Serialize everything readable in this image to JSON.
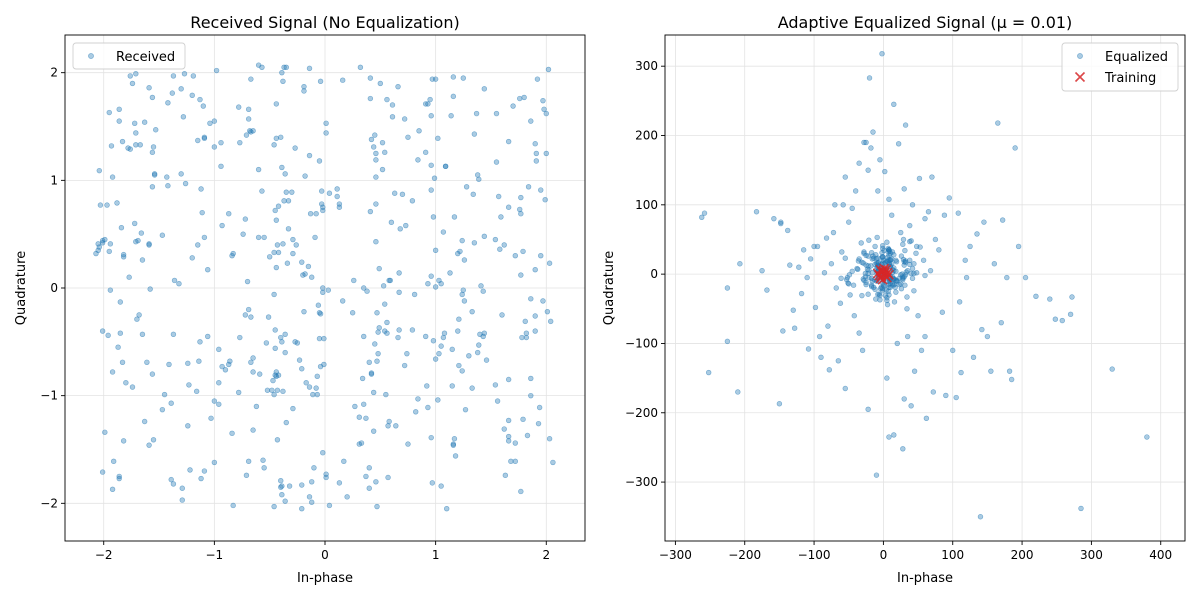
{
  "chart_data": [
    {
      "type": "scatter",
      "title": "Received Signal (No Equalization)",
      "xlabel": "In-phase",
      "ylabel": "Quadrature",
      "xlim": [
        -2.35,
        2.35
      ],
      "ylim": [
        -2.35,
        2.35
      ],
      "xticks": [
        -2,
        -1,
        0,
        1,
        2
      ],
      "yticks": [
        -2,
        -1,
        0,
        1,
        2
      ],
      "xtick_labels": [
        "−2",
        "−1",
        "0",
        "1",
        "2"
      ],
      "ytick_labels": [
        "−2",
        "−1",
        "0",
        "1",
        "2"
      ],
      "grid": true,
      "legend": "top-left",
      "series": [
        {
          "name": "Received",
          "color": "#1f77b4",
          "marker": "circle",
          "generator": {
            "type": "cluster-grid",
            "levels": [
              -1.8,
              -1.2,
              -0.65,
              -0.2,
              0.2,
              0.65,
              1.2,
              1.8
            ],
            "count": 520
          }
        }
      ]
    },
    {
      "type": "scatter",
      "title": "Adaptive Equalized Signal (μ = 0.01)",
      "xlabel": "In-phase",
      "ylabel": "Quadrature",
      "xlim": [
        -315,
        435
      ],
      "ylim": [
        -385,
        345
      ],
      "xticks": [
        -300,
        -200,
        -100,
        0,
        100,
        200,
        300,
        400
      ],
      "yticks": [
        -300,
        -200,
        -100,
        0,
        100,
        200,
        300
      ],
      "xtick_labels": [
        "−300",
        "−200",
        "−100",
        "0",
        "100",
        "200",
        "300",
        "400"
      ],
      "ytick_labels": [
        "−300",
        "−200",
        "−100",
        "0",
        "100",
        "200",
        "300"
      ],
      "grid": true,
      "legend": "top-right",
      "series": [
        {
          "name": "Equalized",
          "color": "#1f77b4",
          "marker": "circle",
          "points": [
            [
              -258,
              88
            ],
            [
              -262,
              82
            ],
            [
              -252,
              -142
            ],
            [
              -225,
              -20
            ],
            [
              -225,
              -97
            ],
            [
              -210,
              -170
            ],
            [
              -207,
              15
            ],
            [
              -183,
              90
            ],
            [
              -175,
              5
            ],
            [
              -168,
              -23
            ],
            [
              -158,
              80
            ],
            [
              -150,
              -187
            ],
            [
              -148,
              73
            ],
            [
              -145,
              -82
            ],
            [
              -138,
              63
            ],
            [
              -135,
              13
            ],
            [
              -130,
              -52
            ],
            [
              -128,
              -78
            ],
            [
              -122,
              10
            ],
            [
              -118,
              -28
            ],
            [
              -115,
              35
            ],
            [
              -110,
              -5
            ],
            [
              -108,
              -108
            ],
            [
              -105,
              22
            ],
            [
              -98,
              -48
            ],
            [
              -95,
              40
            ],
            [
              -92,
              -90
            ],
            [
              -90,
              -120
            ],
            [
              -85,
              2
            ],
            [
              -82,
              52
            ],
            [
              -80,
              -75
            ],
            [
              -78,
              -138
            ],
            [
              -75,
              15
            ],
            [
              -72,
              60
            ],
            [
              -68,
              -20
            ],
            [
              -65,
              -125
            ],
            [
              -62,
              -42
            ],
            [
              -60,
              32
            ],
            [
              -58,
              100
            ],
            [
              -55,
              140
            ],
            [
              -55,
              -165
            ],
            [
              -52,
              -5
            ],
            [
              -50,
              75
            ],
            [
              -48,
              -30
            ],
            [
              -45,
              95
            ],
            [
              -42,
              -60
            ],
            [
              -40,
              120
            ],
            [
              -38,
              8
            ],
            [
              -35,
              -85
            ],
            [
              -32,
              45
            ],
            [
              -30,
              -110
            ],
            [
              -28,
              190
            ],
            [
              -25,
              -15
            ],
            [
              -22,
              150
            ],
            [
              -22,
              -195
            ],
            [
              -20,
              283
            ],
            [
              -18,
              182
            ],
            [
              -15,
              205
            ],
            [
              -12,
              40
            ],
            [
              -10,
              -290
            ],
            [
              -8,
              120
            ],
            [
              -5,
              165
            ],
            [
              -2,
              318
            ],
            [
              2,
              148
            ],
            [
              5,
              -150
            ],
            [
              8,
              108
            ],
            [
              8,
              -235
            ],
            [
              12,
              85
            ],
            [
              15,
              245
            ],
            [
              15,
              -232
            ],
            [
              18,
              20
            ],
            [
              20,
              -100
            ],
            [
              22,
              188
            ],
            [
              25,
              60
            ],
            [
              28,
              -252
            ],
            [
              30,
              123
            ],
            [
              32,
              215
            ],
            [
              35,
              -90
            ],
            [
              38,
              70
            ],
            [
              40,
              -190
            ],
            [
              42,
              100
            ],
            [
              45,
              -140
            ],
            [
              48,
              40
            ],
            [
              50,
              -60
            ],
            [
              52,
              138
            ],
            [
              55,
              -110
            ],
            [
              58,
              20
            ],
            [
              60,
              -90
            ],
            [
              62,
              -208
            ],
            [
              65,
              90
            ],
            [
              68,
              5
            ],
            [
              70,
              140
            ],
            [
              72,
              -170
            ],
            [
              75,
              50
            ],
            [
              80,
              35
            ],
            [
              85,
              -55
            ],
            [
              88,
              85
            ],
            [
              90,
              -175
            ],
            [
              95,
              110
            ],
            [
              100,
              -110
            ],
            [
              105,
              -178
            ],
            [
              108,
              88
            ],
            [
              110,
              -40
            ],
            [
              112,
              -142
            ],
            [
              118,
              20
            ],
            [
              120,
              -5
            ],
            [
              125,
              40
            ],
            [
              130,
              -120
            ],
            [
              135,
              58
            ],
            [
              140,
              -350
            ],
            [
              142,
              -80
            ],
            [
              145,
              75
            ],
            [
              150,
              -90
            ],
            [
              155,
              -140
            ],
            [
              160,
              15
            ],
            [
              165,
              218
            ],
            [
              170,
              -70
            ],
            [
              172,
              78
            ],
            [
              178,
              -5
            ],
            [
              182,
              -140
            ],
            [
              185,
              -152
            ],
            [
              190,
              182
            ],
            [
              195,
              40
            ],
            [
              205,
              -5
            ],
            [
              220,
              -32
            ],
            [
              240,
              -36
            ],
            [
              248,
              -65
            ],
            [
              258,
              -67
            ],
            [
              270,
              -58
            ],
            [
              272,
              -33
            ],
            [
              285,
              -338
            ],
            [
              330,
              -137
            ],
            [
              380,
              -235
            ],
            [
              -148,
              75
            ],
            [
              -35,
              160
            ],
            [
              -25,
              190
            ],
            [
              30,
              -180
            ],
            [
              -100,
              40
            ],
            [
              60,
              80
            ],
            [
              -70,
              100
            ]
          ],
          "core": {
            "count": 200,
            "spread": 22
          }
        },
        {
          "name": "Training",
          "color": "#d62728",
          "marker": "x",
          "points": [
            [
              -4,
              -6
            ],
            [
              4,
              6
            ],
            [
              -4,
              6
            ],
            [
              5,
              -5
            ],
            [
              0,
              0
            ],
            [
              -2,
              3
            ],
            [
              3,
              -2
            ],
            [
              6,
              2
            ],
            [
              -6,
              -2
            ],
            [
              1,
              8
            ],
            [
              -1,
              -8
            ],
            [
              8,
              -1
            ],
            [
              -8,
              1
            ],
            [
              2,
              2
            ],
            [
              -3,
              -3
            ],
            [
              0,
              5
            ]
          ]
        }
      ]
    }
  ]
}
